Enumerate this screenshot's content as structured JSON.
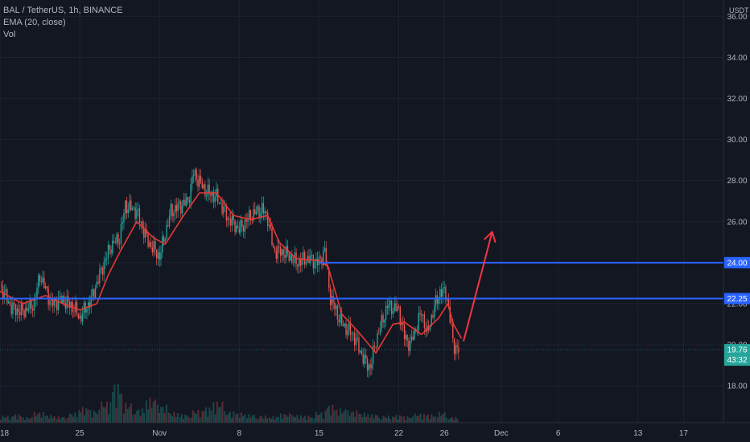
{
  "legend": {
    "symbol": "BAL / TetherUS, 1h, BINANCE",
    "indicator": "EMA (20, close)",
    "volume": "Vol"
  },
  "colors": {
    "background": "#131722",
    "grid": "#1e222d",
    "axis_text": "#b2b5be",
    "candle_up": "#26a69a",
    "candle_down": "#ef5350",
    "ema": "#e53935",
    "level_line": "#2962ff",
    "arrow": "#f23645",
    "price_label": "#26a69a"
  },
  "chart_data": {
    "type": "candlestick",
    "symbol": "BAL / TetherUS",
    "timeframe": "1h",
    "exchange": "BINANCE",
    "y_unit": "USDT",
    "ylim": [
      16.2,
      36.8
    ],
    "y_ticks": [
      "18.00",
      "20.00",
      "22.00",
      "24.00",
      "26.00",
      "28.00",
      "30.00",
      "32.00",
      "34.00",
      "36.00"
    ],
    "x_ticks": [
      {
        "label": "18",
        "day": 0
      },
      {
        "label": "25",
        "day": 7
      },
      {
        "label": "Nov",
        "day": 14
      },
      {
        "label": "8",
        "day": 21
      },
      {
        "label": "15",
        "day": 28
      },
      {
        "label": "22",
        "day": 35
      },
      {
        "label": "26",
        "day": 39
      },
      {
        "label": "Dec",
        "day": 44
      },
      {
        "label": "6",
        "day": 49
      },
      {
        "label": "13",
        "day": 56
      },
      {
        "label": "17",
        "day": 60
      }
    ],
    "x_range_days": [
      0,
      63.5
    ],
    "price_path": [
      [
        0,
        22.9
      ],
      [
        1,
        21.8
      ],
      [
        2,
        21.6
      ],
      [
        3,
        22.0
      ],
      [
        3.5,
        23.4
      ],
      [
        4.5,
        22.0
      ],
      [
        5.5,
        22.2
      ],
      [
        6.5,
        21.8
      ],
      [
        7,
        21.3
      ],
      [
        8,
        22.2
      ],
      [
        9,
        23.8
      ],
      [
        9.7,
        24.8
      ],
      [
        10.5,
        25.2
      ],
      [
        11,
        26.8
      ],
      [
        12,
        26.5
      ],
      [
        13,
        25.0
      ],
      [
        14,
        24.3
      ],
      [
        15,
        26.5
      ],
      [
        16.5,
        27.0
      ],
      [
        17,
        28.4
      ],
      [
        18,
        27.5
      ],
      [
        19,
        27.2
      ],
      [
        20,
        26.2
      ],
      [
        21,
        25.6
      ],
      [
        22,
        26.3
      ],
      [
        23,
        26.6
      ],
      [
        23.5,
        26.2
      ],
      [
        24,
        24.6
      ],
      [
        25,
        24.5
      ],
      [
        26,
        24.0
      ],
      [
        27,
        24.2
      ],
      [
        28,
        24.0
      ],
      [
        28.5,
        24.6
      ],
      [
        29,
        22.3
      ],
      [
        30,
        21.0
      ],
      [
        31,
        20.5
      ],
      [
        32,
        19.2
      ],
      [
        32.5,
        18.9
      ],
      [
        33,
        20.2
      ],
      [
        34,
        21.9
      ],
      [
        35,
        21.7
      ],
      [
        35.5,
        20.4
      ],
      [
        36,
        20.0
      ],
      [
        37,
        21.6
      ],
      [
        37.5,
        20.5
      ],
      [
        38,
        21.6
      ],
      [
        38.6,
        22.6
      ],
      [
        39.2,
        22.5
      ],
      [
        39.8,
        20.0
      ],
      [
        40.3,
        19.7
      ]
    ],
    "ema_path": [
      [
        0,
        22.6
      ],
      [
        2,
        22.0
      ],
      [
        4,
        22.4
      ],
      [
        5.5,
        22.0
      ],
      [
        7,
        21.7
      ],
      [
        8.5,
        22.0
      ],
      [
        9.5,
        23.4
      ],
      [
        10.5,
        24.5
      ],
      [
        12,
        26.0
      ],
      [
        13.5,
        25.2
      ],
      [
        14.5,
        24.9
      ],
      [
        16,
        26.2
      ],
      [
        17.5,
        27.4
      ],
      [
        19,
        27.4
      ],
      [
        20.5,
        26.3
      ],
      [
        22,
        26.1
      ],
      [
        23.5,
        26.3
      ],
      [
        24.5,
        25.0
      ],
      [
        26,
        24.2
      ],
      [
        28,
        24.1
      ],
      [
        28.8,
        23.8
      ],
      [
        30,
        21.5
      ],
      [
        31.5,
        20.6
      ],
      [
        33,
        19.6
      ],
      [
        34.5,
        21.0
      ],
      [
        35.5,
        21.1
      ],
      [
        37,
        20.5
      ],
      [
        38.5,
        21.3
      ],
      [
        39.3,
        22.0
      ],
      [
        39.8,
        21.0
      ],
      [
        40.5,
        20.3
      ]
    ],
    "volume_heights": [
      0.1,
      0.12,
      0.08,
      0.15,
      0.11,
      0.09,
      0.14,
      0.22,
      0.18,
      0.3,
      0.55,
      0.28,
      0.2,
      0.35,
      0.25,
      0.15,
      0.12,
      0.18,
      0.22,
      0.3,
      0.16,
      0.14,
      0.12,
      0.1,
      0.09,
      0.13,
      0.11,
      0.1,
      0.15,
      0.25,
      0.2,
      0.17,
      0.14,
      0.12,
      0.1,
      0.11,
      0.09,
      0.13,
      0.12,
      0.15,
      0.08
    ],
    "horizontal_levels": [
      {
        "value": 24.0,
        "label": "24.00",
        "from_day": 28
      },
      {
        "value": 22.25,
        "label": "22.25",
        "from_day": 0
      }
    ],
    "current_price": {
      "value": 19.76,
      "label": "19.76",
      "countdown": "43:32"
    },
    "projection_arrow": {
      "from": [
        40.7,
        20.2
      ],
      "to": [
        43.2,
        25.5
      ]
    }
  }
}
